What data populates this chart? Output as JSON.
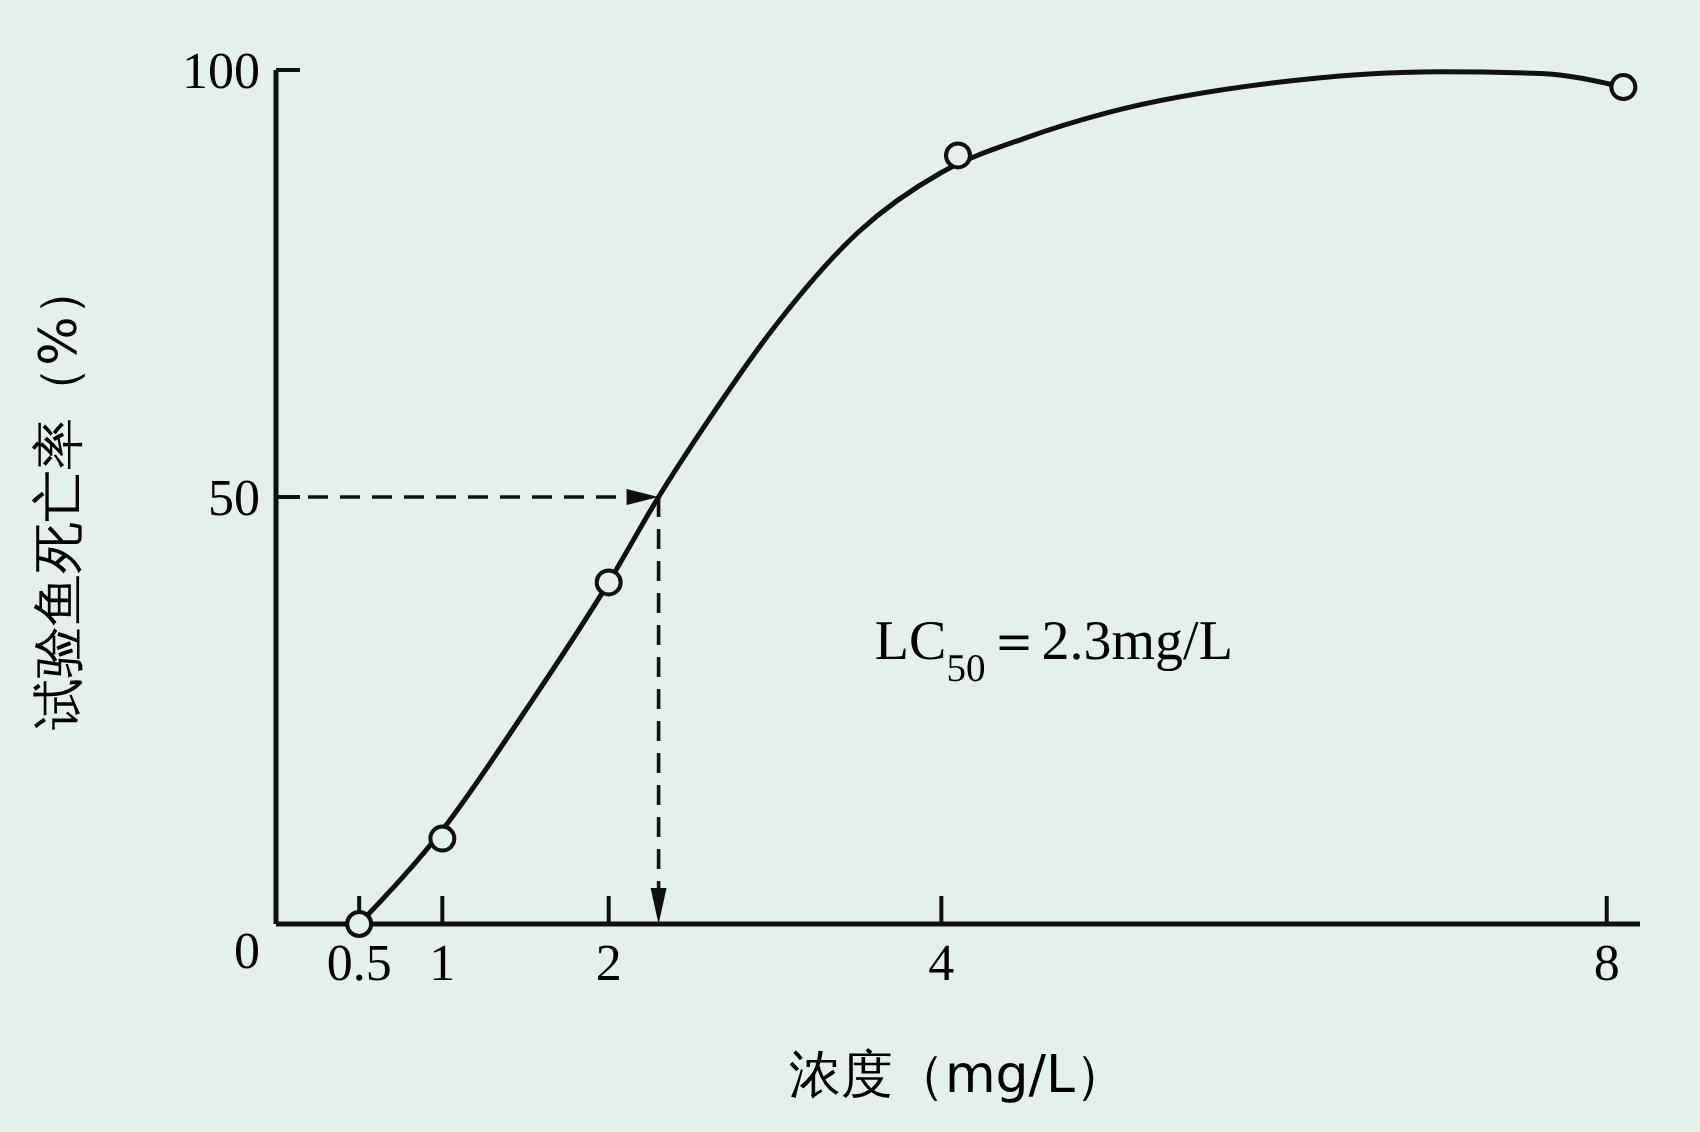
{
  "chart_data": {
    "type": "scatter",
    "xlabel": "浓度（mg/L）",
    "ylabel": "试验鱼死亡率（%）",
    "xlim": [
      0,
      8.2
    ],
    "xticks": [
      0.5,
      1,
      2,
      4,
      8
    ],
    "ylim": [
      0,
      100
    ],
    "yticks": [
      0,
      50,
      100
    ],
    "series": [
      {
        "type": "line",
        "color": "#111111",
        "marker": "none",
        "x": [
          0.5,
          1,
          1.5,
          2,
          2.3,
          2.6,
          3,
          3.5,
          4,
          4.5,
          5,
          6,
          7,
          7.6,
          8.1
        ],
        "values": [
          0,
          11,
          25,
          40,
          50,
          59,
          70,
          81,
          88,
          92,
          95,
          98.5,
          99.8,
          99.6,
          98
        ]
      },
      {
        "type": "scatter",
        "color": "#111111",
        "marker": "circle",
        "x": [
          0.5,
          1,
          2,
          4.1,
          8.1
        ],
        "values": [
          0,
          10,
          40,
          90,
          98
        ]
      }
    ],
    "ref_lines": [
      {
        "axis": "y",
        "value": 50,
        "line_style": "dashed"
      },
      {
        "axis": "x",
        "value": 2.3,
        "line_style": "dashed"
      }
    ],
    "annotations": [
      "LC$_{50}$＝2.3mg/L"
    ],
    "grid": false
  }
}
